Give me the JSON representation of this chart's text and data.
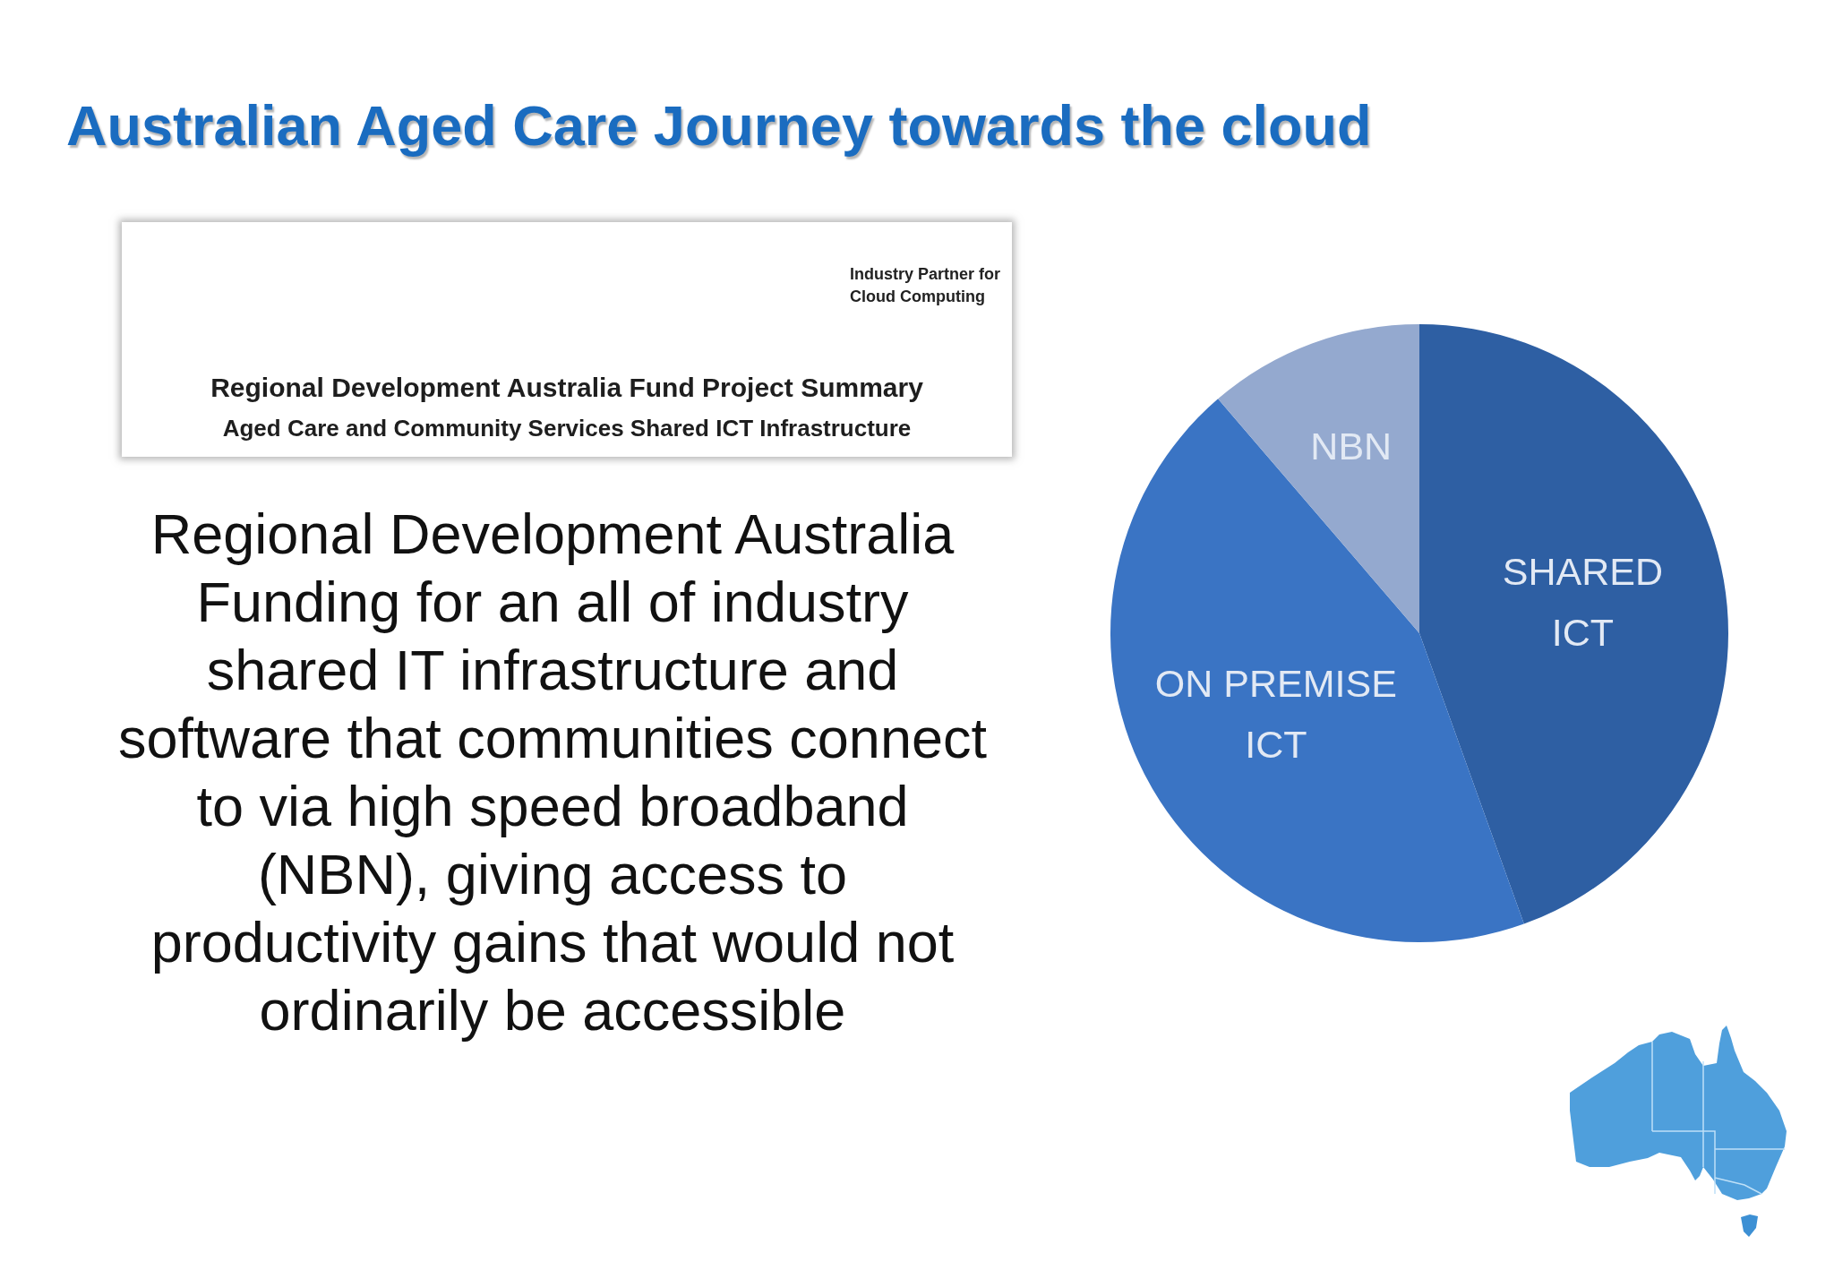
{
  "chart_data": {
    "type": "pie",
    "title": "Australian Aged Care Journey towards the cloud",
    "categories": [
      "SHARED ICT",
      "ON PREMISE ICT",
      "NBN"
    ],
    "values": [
      44.5,
      44.2,
      11.3
    ],
    "colors": [
      "#2e5fa3",
      "#3a74c4",
      "#94a9cf"
    ],
    "annotations": [
      "Industry Partner for Cloud Computing",
      "Regional Development Australia Fund Project Summary",
      "Aged Care and Community Services Shared ICT Infrastructure",
      "Regional Development Australia Funding for an all of industry shared IT infrastructure and software that communities connect to via high speed broadband (NBN), giving access to productivity gains that would not ordinarily be accessible"
    ]
  }
}
